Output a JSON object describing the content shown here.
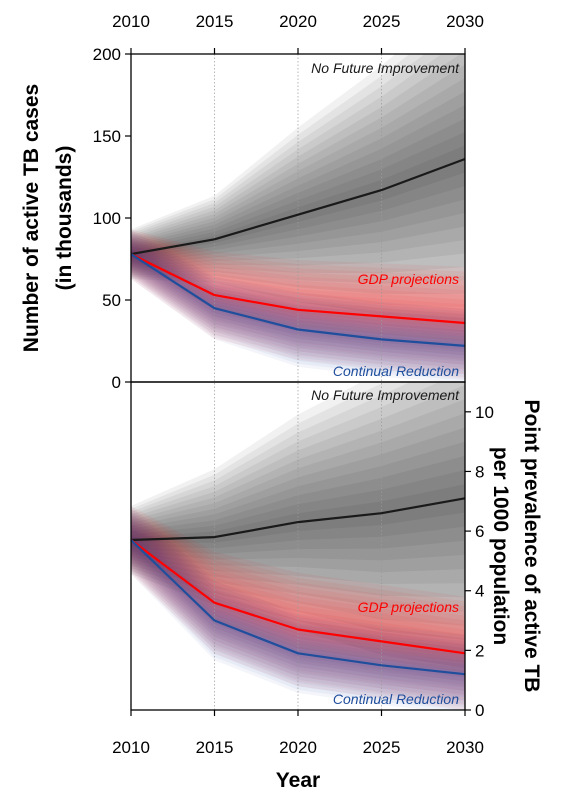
{
  "chart_data": [
    {
      "type": "line",
      "panel": "top",
      "x": [
        2010,
        2015,
        2020,
        2025,
        2030
      ],
      "xlim": [
        2010,
        2030
      ],
      "ylim": [
        0,
        200
      ],
      "yticks": [
        0,
        50,
        100,
        150,
        200
      ],
      "ylabel_lines": [
        "Number of active TB cases",
        "(in thousands)"
      ],
      "series": [
        {
          "name": "No Future Improvement",
          "color": "#1a1a1a",
          "values": [
            78,
            87,
            102,
            117,
            136
          ],
          "band_spread": [
            8,
            14,
            28,
            40,
            52
          ],
          "band_color": "#000000"
        },
        {
          "name": "GDP projections",
          "color": "#ff0000",
          "values": [
            78,
            53,
            44,
            40,
            36
          ],
          "band_spread": [
            8,
            14,
            16,
            17,
            18
          ],
          "band_color": "#ff0000"
        },
        {
          "name": "Continual Reduction",
          "color": "#1f4e9c",
          "values": [
            78,
            45,
            32,
            26,
            22
          ],
          "band_spread": [
            8,
            10,
            12,
            12,
            12
          ],
          "band_color": "#1f4e9c"
        }
      ]
    },
    {
      "type": "line",
      "panel": "bottom",
      "x": [
        2010,
        2015,
        2020,
        2025,
        2030
      ],
      "xlim": [
        2010,
        2030
      ],
      "ylim": [
        0,
        11
      ],
      "yticks": [
        0,
        2,
        4,
        6,
        8,
        10
      ],
      "ylabel_lines": [
        "Point prevalence of active TB",
        "per 1000 population"
      ],
      "series": [
        {
          "name": "No Future Improvement",
          "color": "#1a1a1a",
          "values": [
            5.7,
            5.8,
            6.3,
            6.6,
            7.1
          ],
          "band_spread": [
            0.6,
            1.2,
            1.9,
            2.5,
            3.0
          ],
          "band_color": "#000000"
        },
        {
          "name": "GDP projections",
          "color": "#ff0000",
          "values": [
            5.7,
            3.6,
            2.7,
            2.3,
            1.9
          ],
          "band_spread": [
            0.6,
            0.9,
            1.0,
            1.0,
            1.0
          ],
          "band_color": "#ff0000"
        },
        {
          "name": "Continual Reduction",
          "color": "#1f4e9c",
          "values": [
            5.7,
            3.0,
            1.9,
            1.5,
            1.2
          ],
          "band_spread": [
            0.6,
            0.7,
            0.7,
            0.7,
            0.7
          ],
          "band_color": "#1f4e9c"
        }
      ]
    }
  ],
  "xlabel": "Year",
  "xticks": [
    "2010",
    "2015",
    "2020",
    "2025",
    "2030"
  ],
  "annotations": {
    "top": {
      "no_future": "No Future Improvement",
      "gdp": "GDP projections",
      "continual": "Continual Reduction"
    },
    "bottom": {
      "no_future": "No Future Improvement",
      "gdp": "GDP projections",
      "continual": "Continual Reduction"
    }
  }
}
